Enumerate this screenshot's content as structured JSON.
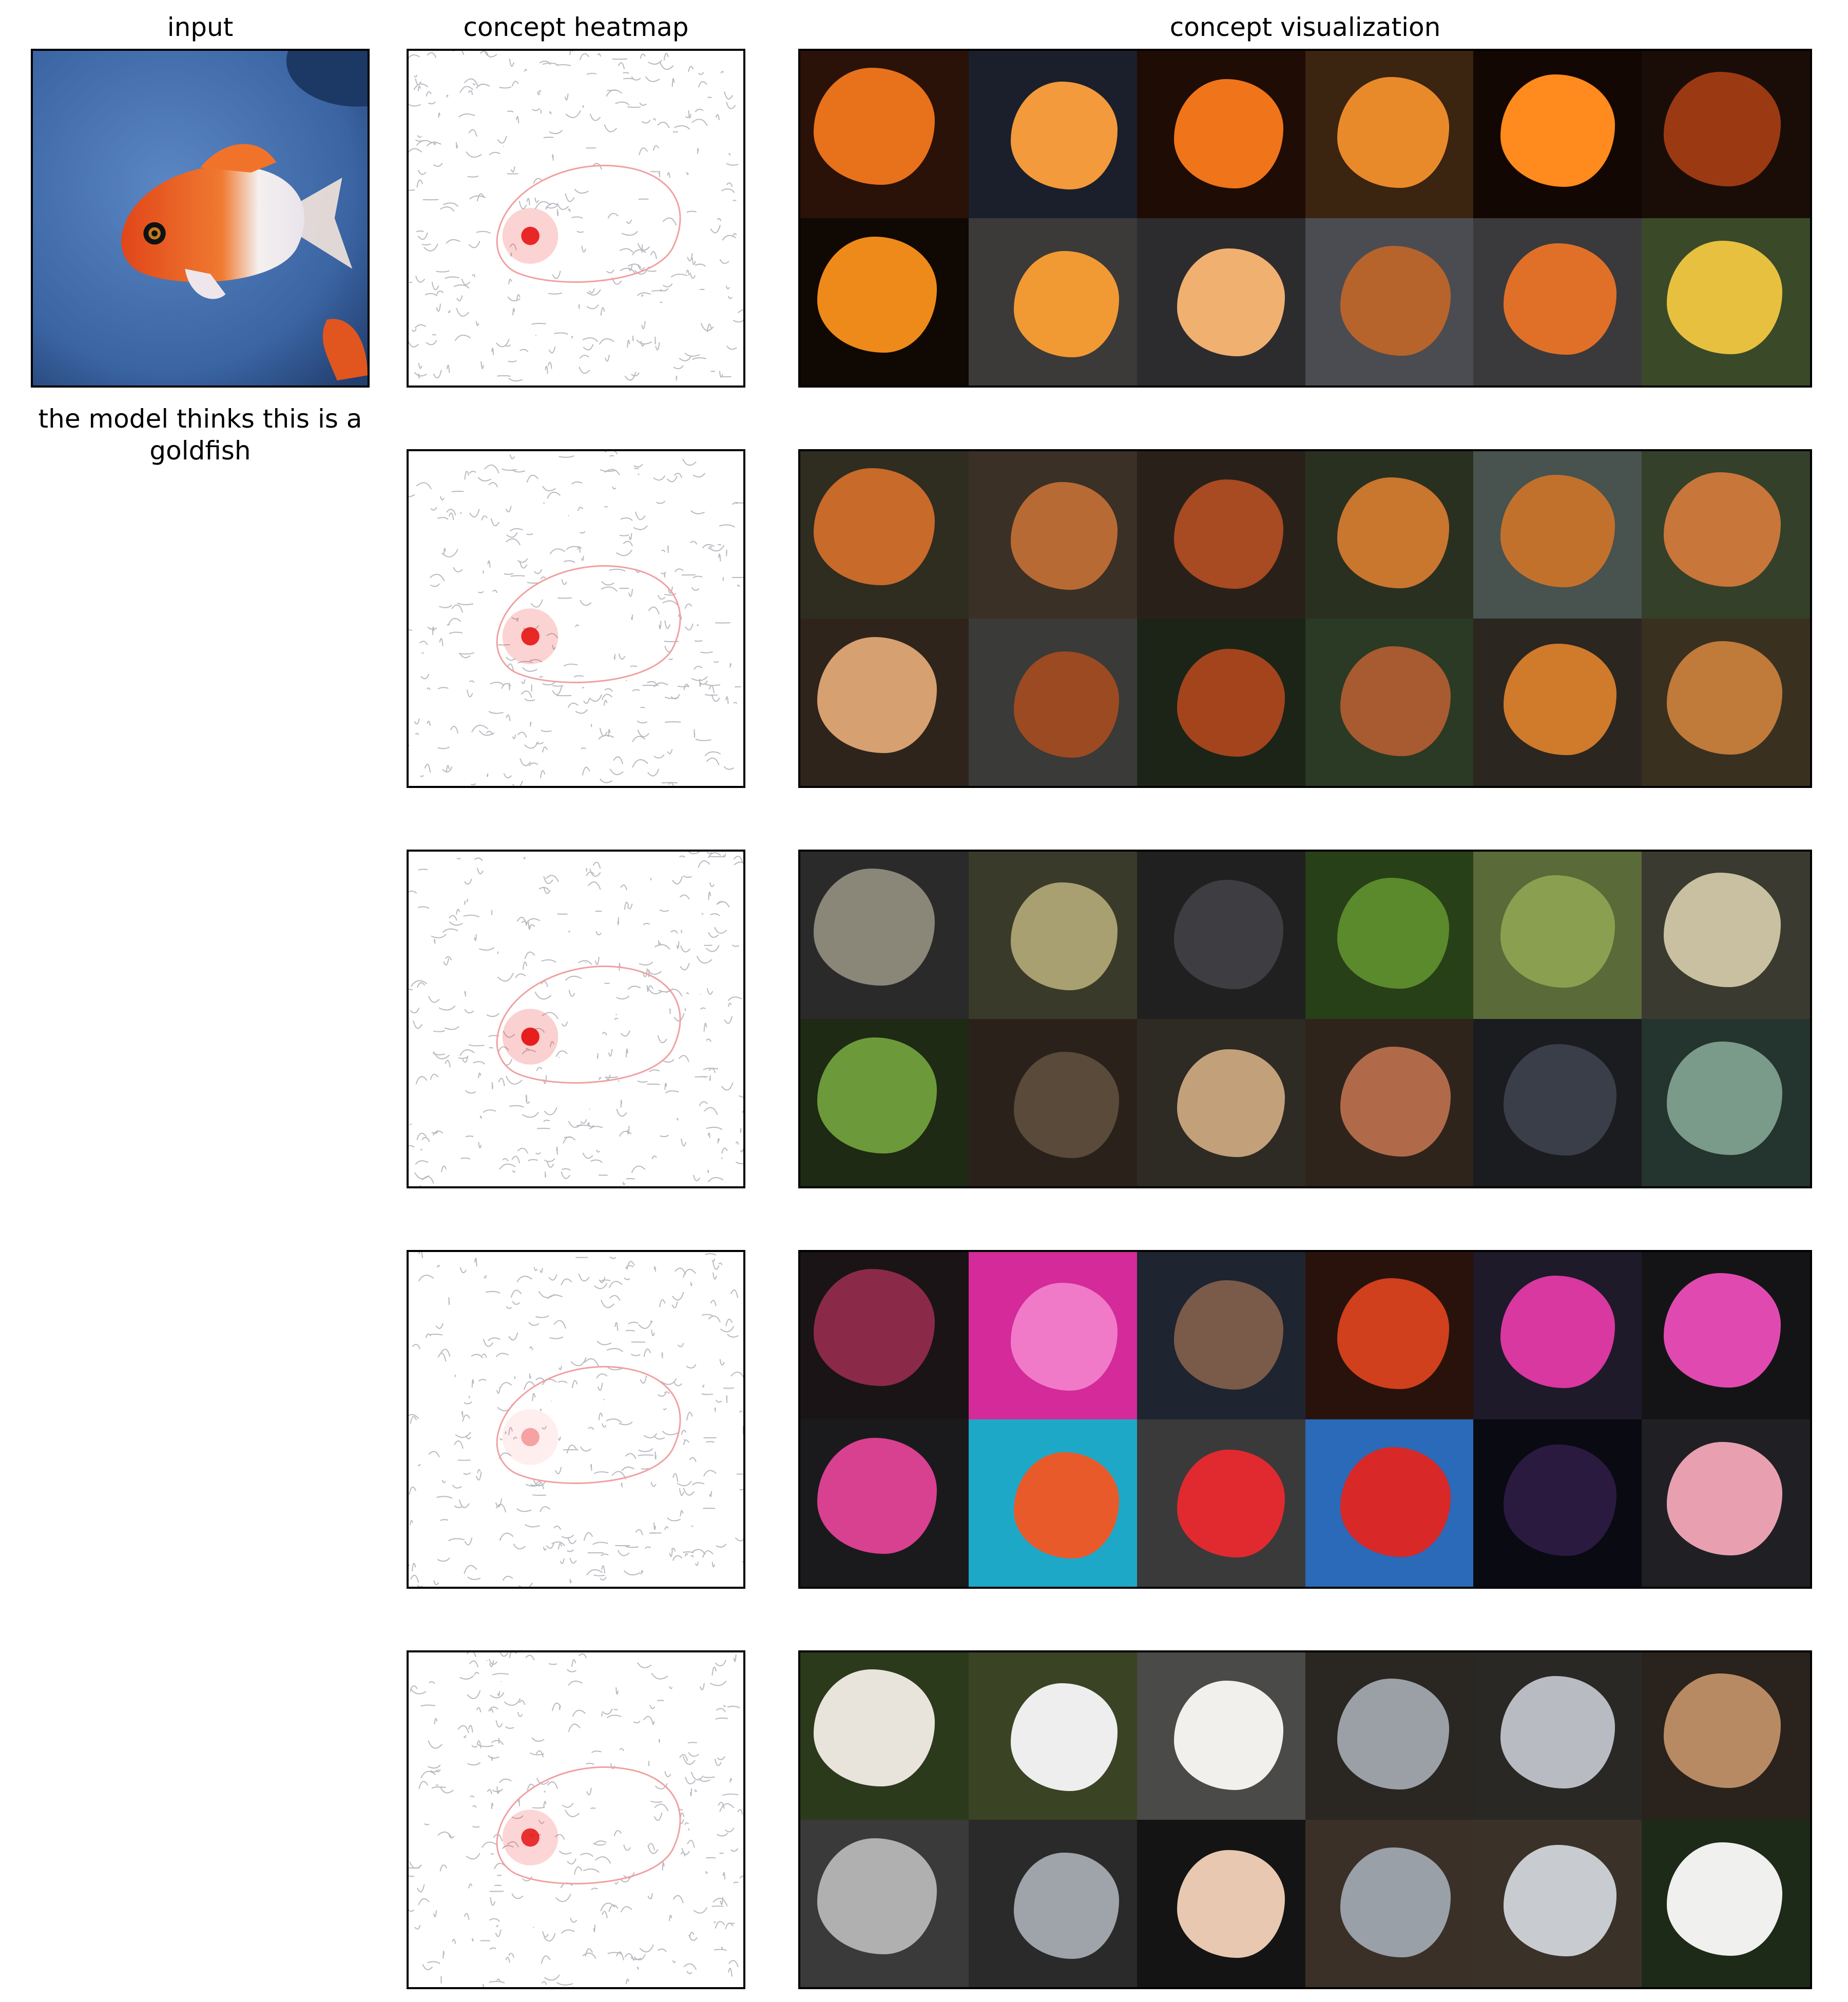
{
  "titles": {
    "input": "input",
    "heatmap": "concept heatmap",
    "visualization": "concept visualization"
  },
  "caption": "the model thinks this is a goldfish",
  "input_image": {
    "subject": "goldfish",
    "colors": {
      "water": "#3f6fae",
      "fish": "#e6501e",
      "fin": "#f2f2f4"
    }
  },
  "concepts": [
    {
      "heat_intensity": 0.9,
      "tiles": [
        {
          "bg": "#2a1208",
          "blob": "#e8711c"
        },
        {
          "bg": "#1b1f2b",
          "blob": "#f39a3c"
        },
        {
          "bg": "#1e0c05",
          "blob": "#f0741a"
        },
        {
          "bg": "#3b2410",
          "blob": "#e98a2a"
        },
        {
          "bg": "#120702",
          "blob": "#ff8a1e"
        },
        {
          "bg": "#1a0d08",
          "blob": "#9b3a12"
        },
        {
          "bg": "#100803",
          "blob": "#ee8a1a"
        },
        {
          "bg": "#3c3a38",
          "blob": "#f19a34"
        },
        {
          "bg": "#2c2c2e",
          "blob": "#f0b070"
        },
        {
          "bg": "#4a4c52",
          "blob": "#b6642c"
        },
        {
          "bg": "#3a3a3c",
          "blob": "#e07028"
        },
        {
          "bg": "#3a4a28",
          "blob": "#e8c040"
        }
      ]
    },
    {
      "heat_intensity": 0.9,
      "tiles": [
        {
          "bg": "#2f2c20",
          "blob": "#c86a2a"
        },
        {
          "bg": "#3a3026",
          "blob": "#b86a34"
        },
        {
          "bg": "#2a201a",
          "blob": "#a84a22"
        },
        {
          "bg": "#2a3020",
          "blob": "#c9762f"
        },
        {
          "bg": "#48524e",
          "blob": "#c2712c"
        },
        {
          "bg": "#34402a",
          "blob": "#c8763a"
        },
        {
          "bg": "#2e241c",
          "blob": "#d7a070"
        },
        {
          "bg": "#3a3a38",
          "blob": "#9c4a22"
        },
        {
          "bg": "#1c2418",
          "blob": "#a4441c"
        },
        {
          "bg": "#2a3a24",
          "blob": "#a85a30"
        },
        {
          "bg": "#2c2620",
          "blob": "#d07a2c"
        },
        {
          "bg": "#3a3020",
          "blob": "#c07a3a"
        }
      ]
    },
    {
      "heat_intensity": 0.95,
      "tiles": [
        {
          "bg": "#2a2a2a",
          "blob": "#8a8678"
        },
        {
          "bg": "#3a3a2a",
          "blob": "#a8a070"
        },
        {
          "bg": "#202020",
          "blob": "#3e3e42"
        },
        {
          "bg": "#284018",
          "blob": "#5a8a2c"
        },
        {
          "bg": "#5a6a38",
          "blob": "#8aa050"
        },
        {
          "bg": "#3a3a30",
          "blob": "#c8c0a0"
        },
        {
          "bg": "#1e2a14",
          "blob": "#6c9a3a"
        },
        {
          "bg": "#2a221a",
          "blob": "#5a4a3a"
        },
        {
          "bg": "#2e2a24",
          "blob": "#c2a07a"
        },
        {
          "bg": "#2e241c",
          "blob": "#b06a4a"
        },
        {
          "bg": "#1a1c20",
          "blob": "#3a3e48"
        },
        {
          "bg": "#24342e",
          "blob": "#7a9a8a"
        }
      ]
    },
    {
      "heat_intensity": 0.35,
      "tiles": [
        {
          "bg": "#1a1416",
          "blob": "#8a2a48"
        },
        {
          "bg": "#d42a9a",
          "blob": "#f07ac8"
        },
        {
          "bg": "#1e2430",
          "blob": "#7a5a48"
        },
        {
          "bg": "#2a120c",
          "blob": "#d0401c"
        },
        {
          "bg": "#1e1a2a",
          "blob": "#d838a0"
        },
        {
          "bg": "#141416",
          "blob": "#e04ab0"
        },
        {
          "bg": "#1a1a1c",
          "blob": "#d84090"
        },
        {
          "bg": "#1ea8c8",
          "blob": "#e85a2a"
        },
        {
          "bg": "#3a3a3a",
          "blob": "#e02a30"
        },
        {
          "bg": "#2a6ab8",
          "blob": "#d82828"
        },
        {
          "bg": "#0a0a12",
          "blob": "#2a1a40"
        },
        {
          "bg": "#202024",
          "blob": "#e8a0b0"
        }
      ]
    },
    {
      "heat_intensity": 0.85,
      "tiles": [
        {
          "bg": "#2c3a1c",
          "blob": "#e8e4dc"
        },
        {
          "bg": "#3a4424",
          "blob": "#eeeeee"
        },
        {
          "bg": "#4a4a48",
          "blob": "#f2f0ec"
        },
        {
          "bg": "#2a2622",
          "blob": "#9aa0a6"
        },
        {
          "bg": "#2a2824",
          "blob": "#b8bcc2"
        },
        {
          "bg": "#2a221c",
          "blob": "#b88a64"
        },
        {
          "bg": "#3a3a3a",
          "blob": "#b0b0b0"
        },
        {
          "bg": "#2a2a2a",
          "blob": "#9ea4aa"
        },
        {
          "bg": "#141414",
          "blob": "#e8c8b0"
        },
        {
          "bg": "#3a3028",
          "blob": "#9aa0a8"
        },
        {
          "bg": "#3a3228",
          "blob": "#c8ccd0"
        },
        {
          "bg": "#1e2a18",
          "blob": "#f0f0ee"
        }
      ]
    }
  ]
}
